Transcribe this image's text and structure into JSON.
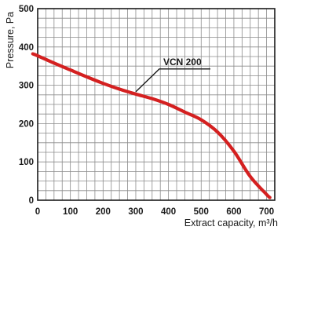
{
  "chart_data": {
    "type": "line",
    "xlabel": "Extract capacity, m³/h",
    "ylabel": "Pressure, Pa",
    "xlim": [
      0,
      725
    ],
    "ylim": [
      0,
      500
    ],
    "x_ticks": [
      0,
      100,
      200,
      300,
      400,
      500,
      600,
      700
    ],
    "y_ticks": [
      0,
      100,
      200,
      300,
      400,
      500
    ],
    "grid": true,
    "series": [
      {
        "name": "VCN 200",
        "color": "#d42020",
        "x": [
          -15,
          0,
          50,
          100,
          150,
          200,
          250,
          300,
          350,
          400,
          450,
          500,
          550,
          600,
          650,
          700,
          710
        ],
        "y": [
          382,
          377,
          358,
          340,
          322,
          305,
          290,
          277,
          265,
          250,
          230,
          210,
          178,
          128,
          62,
          15,
          7
        ]
      }
    ],
    "annotations": [
      {
        "text": "VCN 200",
        "series": "VCN 200",
        "x": 300,
        "y": 277
      }
    ]
  }
}
